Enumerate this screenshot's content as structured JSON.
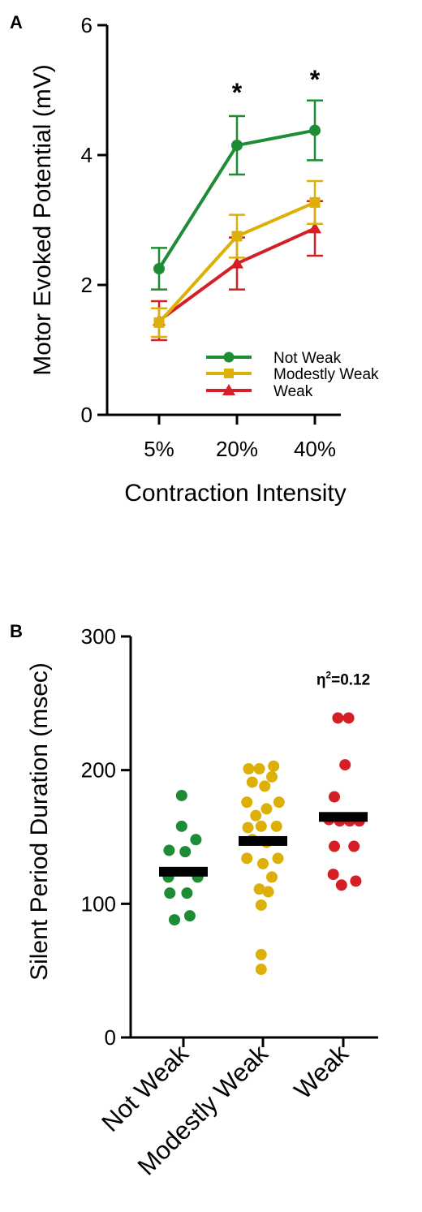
{
  "colors": {
    "not_weak": "#1e8b35",
    "modestly_weak": "#dcb007",
    "weak": "#d41f26",
    "axis": "#000000",
    "mean_bar": "#000000"
  },
  "chart_data": [
    {
      "panel": "A",
      "type": "line",
      "xlabel": "Contraction Intensity",
      "ylabel": "Motor Evoked Potential (mV)",
      "categories": [
        "5%",
        "20%",
        "40%"
      ],
      "yticks": [
        "0",
        "2",
        "4",
        "6"
      ],
      "ylim": [
        0,
        6
      ],
      "legend": "bottom-right",
      "series": [
        {
          "name": "Not Weak",
          "color_key": "not_weak",
          "marker": "circle",
          "values": [
            2.25,
            4.15,
            4.38
          ],
          "error": [
            0.32,
            0.45,
            0.46
          ]
        },
        {
          "name": "Modestly Weak",
          "color_key": "modestly_weak",
          "marker": "square",
          "values": [
            1.42,
            2.75,
            3.27
          ],
          "error": [
            0.22,
            0.33,
            0.33
          ]
        },
        {
          "name": "Weak",
          "color_key": "weak",
          "marker": "triangle",
          "values": [
            1.45,
            2.33,
            2.87
          ],
          "error": [
            0.3,
            0.4,
            0.42
          ]
        }
      ],
      "annotations": [
        {
          "category": "20%",
          "text": "*",
          "y": 5.1
        },
        {
          "category": "40%",
          "text": "*",
          "y": 5.3
        }
      ]
    },
    {
      "panel": "B",
      "type": "scatter",
      "ylabel": "Silent Period Duration (msec)",
      "categories": [
        "Not Weak",
        "Modestly Weak",
        "Weak"
      ],
      "yticks": [
        "0",
        "100",
        "200",
        "300"
      ],
      "ylim": [
        0,
        300
      ],
      "annotation": {
        "text_main": "η",
        "text_sup": "2",
        "text_rest": "=0.12",
        "y": 268
      },
      "groups": [
        {
          "name": "Not Weak",
          "color_key": "not_weak",
          "mean": 124,
          "points": [
            {
              "offset": -0.05,
              "y": 181
            },
            {
              "offset": -0.05,
              "y": 158
            },
            {
              "offset": 0.35,
              "y": 148
            },
            {
              "offset": -0.4,
              "y": 140
            },
            {
              "offset": 0.05,
              "y": 139
            },
            {
              "offset": -0.42,
              "y": 120
            },
            {
              "offset": 0.4,
              "y": 120
            },
            {
              "offset": -0.38,
              "y": 108
            },
            {
              "offset": 0.1,
              "y": 108
            },
            {
              "offset": -0.25,
              "y": 88
            },
            {
              "offset": 0.18,
              "y": 91
            }
          ]
        },
        {
          "name": "Modestly Weak",
          "color_key": "modestly_weak",
          "mean": 147,
          "points": [
            {
              "offset": -0.4,
              "y": 201
            },
            {
              "offset": -0.1,
              "y": 201
            },
            {
              "offset": 0.3,
              "y": 203
            },
            {
              "offset": 0.25,
              "y": 195
            },
            {
              "offset": -0.3,
              "y": 191
            },
            {
              "offset": 0.05,
              "y": 188
            },
            {
              "offset": -0.45,
              "y": 176
            },
            {
              "offset": 0.45,
              "y": 176
            },
            {
              "offset": 0.1,
              "y": 171
            },
            {
              "offset": -0.2,
              "y": 166
            },
            {
              "offset": -0.42,
              "y": 157
            },
            {
              "offset": -0.05,
              "y": 158
            },
            {
              "offset": 0.38,
              "y": 158
            },
            {
              "offset": -0.3,
              "y": 148
            },
            {
              "offset": 0.1,
              "y": 146
            },
            {
              "offset": -0.45,
              "y": 134
            },
            {
              "offset": 0.42,
              "y": 134
            },
            {
              "offset": 0.0,
              "y": 130
            },
            {
              "offset": 0.25,
              "y": 120
            },
            {
              "offset": -0.1,
              "y": 111
            },
            {
              "offset": 0.15,
              "y": 109
            },
            {
              "offset": -0.05,
              "y": 99
            },
            {
              "offset": -0.05,
              "y": 62
            },
            {
              "offset": -0.05,
              "y": 51
            }
          ]
        },
        {
          "name": "Weak",
          "color_key": "weak",
          "mean": 165,
          "points": [
            {
              "offset": -0.15,
              "y": 239
            },
            {
              "offset": 0.15,
              "y": 239
            },
            {
              "offset": 0.05,
              "y": 204
            },
            {
              "offset": -0.25,
              "y": 180
            },
            {
              "offset": -0.4,
              "y": 163
            },
            {
              "offset": -0.1,
              "y": 162
            },
            {
              "offset": 0.18,
              "y": 162
            },
            {
              "offset": 0.45,
              "y": 162
            },
            {
              "offset": -0.25,
              "y": 143
            },
            {
              "offset": 0.3,
              "y": 143
            },
            {
              "offset": -0.28,
              "y": 122
            },
            {
              "offset": 0.35,
              "y": 117
            },
            {
              "offset": -0.05,
              "y": 114
            }
          ]
        }
      ]
    }
  ]
}
